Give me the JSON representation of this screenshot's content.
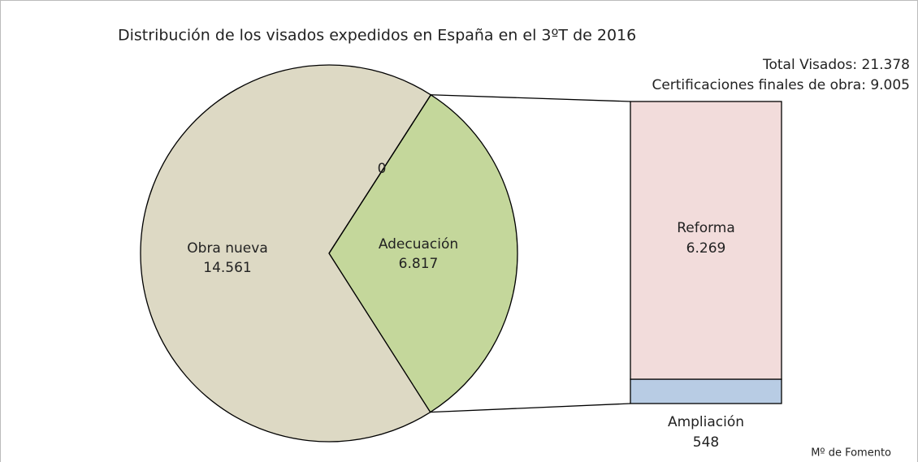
{
  "chart_data": [
    {
      "type": "pie",
      "title": "Distribución de los visados expedidos en España en el 3ºT de 2016",
      "annotations": [
        "Total Visados: 21.378",
        "Certificaciones finales de obra: 9.005"
      ],
      "source": "Mº de Fomento",
      "categories": [
        "Adecuación",
        "Obra nueva",
        null
      ],
      "values": [
        6817,
        14561,
        0
      ],
      "value_labels": [
        "6.817",
        "14.561",
        "0"
      ],
      "colors": [
        "#c4d79b",
        "#ddd9c4",
        "#ddd9c4"
      ]
    },
    {
      "type": "bar",
      "categories": [
        "Reforma",
        "Ampliación"
      ],
      "values": [
        6269,
        548
      ],
      "value_labels": [
        "6.269",
        "548"
      ],
      "colors": [
        "#f2dcdb",
        "#b8cce4"
      ]
    }
  ]
}
